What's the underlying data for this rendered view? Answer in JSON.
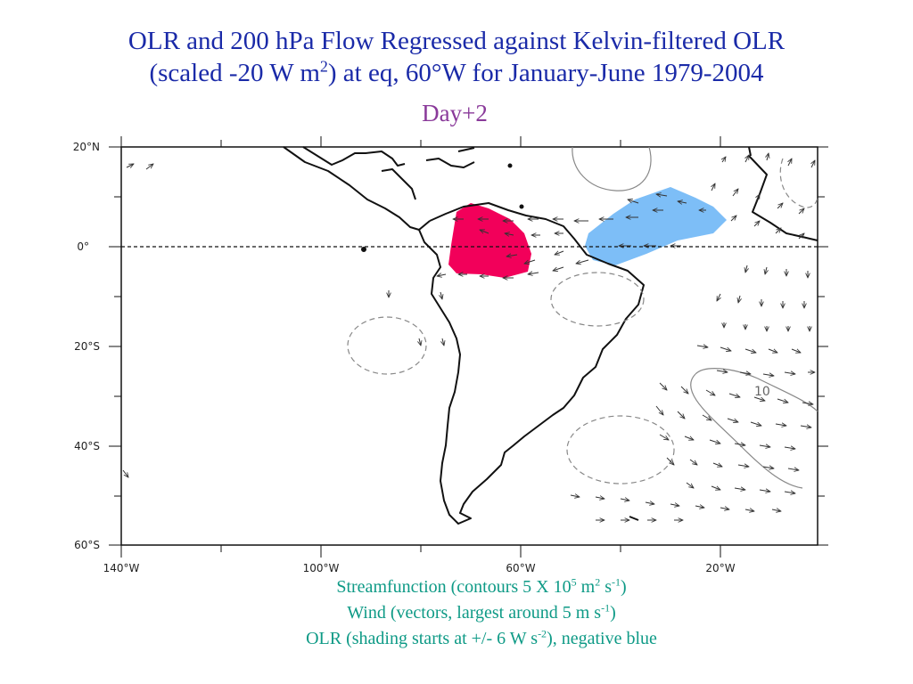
{
  "title": {
    "line1": "OLR and 200 hPa Flow Regressed against Kelvin-filtered OLR",
    "line2_a": "(scaled -20 W m",
    "line2_sup": "2",
    "line2_b": ") at eq, 60°W for January-June 1979-2004"
  },
  "subtitle": "Day+2",
  "map": {
    "lat_labels": [
      "20°N",
      "0°",
      "20°S",
      "40°S",
      "60°S"
    ],
    "lon_labels": [
      "140°W",
      "100°W",
      "60°W",
      "20°W"
    ],
    "contour_label": "10",
    "shading": {
      "positive_color": "#f2005a",
      "negative_color": "#7dbef7"
    }
  },
  "caption": {
    "line1_a": "Streamfunction (contours 5 X 10",
    "line1_sup1": "5",
    "line1_b": " m",
    "line1_sup2": "2",
    "line1_c": " s",
    "line1_sup3": "-1",
    "line1_d": ")",
    "line2_a": "Wind (vectors, largest around 5 m s",
    "line2_sup": "-1",
    "line2_b": ")",
    "line3_a": "OLR (shading starts at +/- 6 W s",
    "line3_sup": "-2",
    "line3_b": "), negative blue"
  }
}
